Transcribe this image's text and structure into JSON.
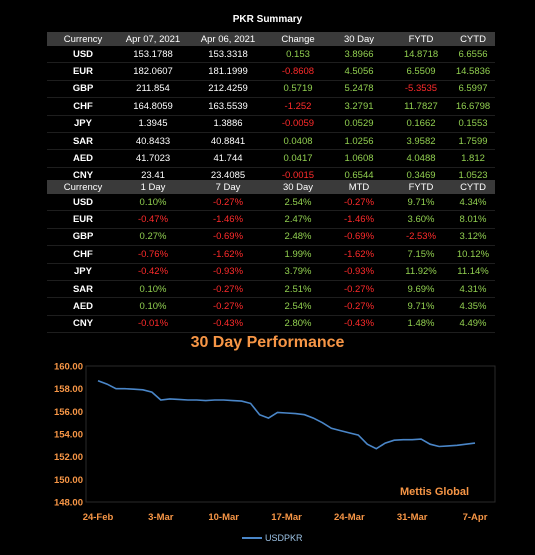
{
  "summary": {
    "title": "PKR Summary",
    "headers": [
      "Currency",
      "Apr 07, 2021",
      "Apr 06, 2021",
      "Change",
      "30 Day",
      "FYTD",
      "CYTD"
    ],
    "rows": [
      {
        "cur": "USD",
        "a": "153.1788",
        "b": "153.3318",
        "chg": "0.153",
        "d30": "3.8966",
        "fytd": "14.8718",
        "cytd": "6.6556"
      },
      {
        "cur": "EUR",
        "a": "182.0607",
        "b": "181.1999",
        "chg": "-0.8608",
        "d30": "4.5056",
        "fytd": "6.5509",
        "cytd": "14.5836"
      },
      {
        "cur": "GBP",
        "a": "211.854",
        "b": "212.4259",
        "chg": "0.5719",
        "d30": "5.2478",
        "fytd": "-5.3535",
        "cytd": "6.5997"
      },
      {
        "cur": "CHF",
        "a": "164.8059",
        "b": "163.5539",
        "chg": "-1.252",
        "d30": "3.2791",
        "fytd": "11.7827",
        "cytd": "16.6798"
      },
      {
        "cur": "JPY",
        "a": "1.3945",
        "b": "1.3886",
        "chg": "-0.0059",
        "d30": "0.0529",
        "fytd": "0.1662",
        "cytd": "0.1553"
      },
      {
        "cur": "SAR",
        "a": "40.8433",
        "b": "40.8841",
        "chg": "0.0408",
        "d30": "1.0256",
        "fytd": "3.9582",
        "cytd": "1.7599"
      },
      {
        "cur": "AED",
        "a": "41.7023",
        "b": "41.744",
        "chg": "0.0417",
        "d30": "1.0608",
        "fytd": "4.0488",
        "cytd": "1.812"
      },
      {
        "cur": "CNY",
        "a": "23.41",
        "b": "23.4085",
        "chg": "-0.0015",
        "d30": "0.6544",
        "fytd": "0.3469",
        "cytd": "1.0523"
      }
    ]
  },
  "percent": {
    "headers": [
      "Currency",
      "1 Day",
      "7 Day",
      "30 Day",
      "MTD",
      "FYTD",
      "CYTD"
    ],
    "rows": [
      {
        "cur": "USD",
        "v": [
          "0.10%",
          "-0.27%",
          "2.54%",
          "-0.27%",
          "9.71%",
          "4.34%"
        ]
      },
      {
        "cur": "EUR",
        "v": [
          "-0.47%",
          "-1.46%",
          "2.47%",
          "-1.46%",
          "3.60%",
          "8.01%"
        ]
      },
      {
        "cur": "GBP",
        "v": [
          "0.27%",
          "-0.69%",
          "2.48%",
          "-0.69%",
          "-2.53%",
          "3.12%"
        ]
      },
      {
        "cur": "CHF",
        "v": [
          "-0.76%",
          "-1.62%",
          "1.99%",
          "-1.62%",
          "7.15%",
          "10.12%"
        ]
      },
      {
        "cur": "JPY",
        "v": [
          "-0.42%",
          "-0.93%",
          "3.79%",
          "-0.93%",
          "11.92%",
          "11.14%"
        ]
      },
      {
        "cur": "SAR",
        "v": [
          "0.10%",
          "-0.27%",
          "2.51%",
          "-0.27%",
          "9.69%",
          "4.31%"
        ]
      },
      {
        "cur": "AED",
        "v": [
          "0.10%",
          "-0.27%",
          "2.54%",
          "-0.27%",
          "9.71%",
          "4.35%"
        ]
      },
      {
        "cur": "CNY",
        "v": [
          "-0.01%",
          "-0.43%",
          "2.80%",
          "-0.43%",
          "1.48%",
          "4.49%"
        ]
      }
    ]
  },
  "colors": {
    "positive": "#92d050",
    "negative": "#ff2b2b",
    "accent": "#f79646",
    "line": "#4a86c8"
  },
  "chart_data": {
    "type": "line",
    "title": "30 Day Performance",
    "x_ticks": [
      "24-Feb",
      "3-Mar",
      "10-Mar",
      "17-Mar",
      "24-Mar",
      "31-Mar",
      "7-Apr"
    ],
    "y_ticks": [
      "160.00",
      "158.00",
      "156.00",
      "154.00",
      "152.00",
      "150.00",
      "148.00"
    ],
    "ylim": [
      148,
      160
    ],
    "grid": false,
    "legend_position": "bottom",
    "watermark": "Mettis Global",
    "series": [
      {
        "name": "USDPKR",
        "x_index": [
          0,
          1,
          2,
          3,
          4,
          5,
          6,
          7,
          8,
          9,
          10,
          11,
          12,
          13,
          14,
          15,
          16,
          17,
          18,
          19,
          20,
          21,
          22,
          23,
          24,
          25,
          26,
          27,
          28,
          29,
          30,
          31,
          32,
          33,
          34,
          35,
          36,
          37,
          38,
          39,
          40,
          41,
          42
        ],
        "values": [
          158.7,
          158.4,
          158.0,
          158.0,
          157.95,
          157.9,
          157.7,
          157.0,
          157.1,
          157.05,
          157.0,
          157.0,
          156.95,
          157.0,
          157.0,
          156.95,
          156.9,
          156.7,
          155.7,
          155.4,
          155.9,
          155.85,
          155.8,
          155.7,
          155.4,
          155.0,
          154.5,
          154.3,
          154.1,
          153.9,
          153.1,
          152.7,
          153.2,
          153.45,
          153.5,
          153.5,
          153.55,
          153.1,
          152.9,
          152.95,
          153.0,
          153.1,
          153.2
        ]
      }
    ]
  }
}
